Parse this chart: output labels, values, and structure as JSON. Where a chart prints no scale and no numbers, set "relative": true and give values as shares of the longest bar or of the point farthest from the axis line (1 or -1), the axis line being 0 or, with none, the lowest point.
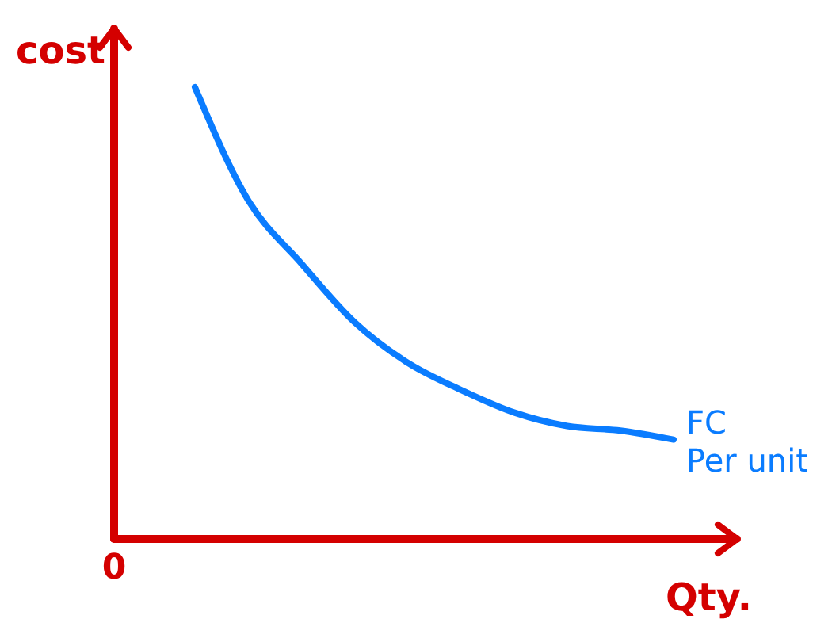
{
  "chart_data": {
    "type": "line",
    "relative": true,
    "xlabel": "Qty.",
    "ylabel": "cost",
    "annotations": [
      "0"
    ],
    "categories": [
      null,
      null,
      null,
      null,
      null,
      null,
      null,
      null,
      null,
      null
    ],
    "series": [
      {
        "name": "FC Per unit",
        "color": "#0a7cff",
        "values": [
          1,
          0.75,
          0.61,
          0.48,
          0.39,
          0.33,
          0.28,
          0.25,
          0.24,
          0.22
        ]
      }
    ],
    "marker": "none",
    "line_style": "solid",
    "grid": false
  }
}
